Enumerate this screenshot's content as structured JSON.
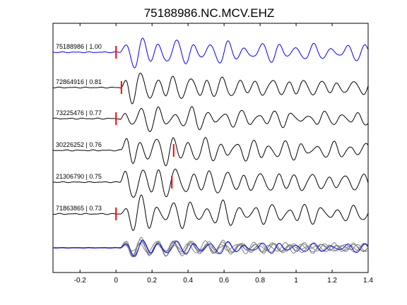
{
  "chart_data": {
    "type": "line",
    "title": "75188986.NC.MCV.EHZ",
    "xlabel": "",
    "ylabel": "",
    "xlim": [
      -0.35,
      1.4
    ],
    "xticks": [
      "-0.2",
      "0",
      "0.2",
      "0.4",
      "0.6",
      "0.8",
      "1",
      "1.2",
      "1.4"
    ],
    "xtick_values": [
      -0.2,
      0,
      0.2,
      0.4,
      0.6,
      0.8,
      1.0,
      1.2,
      1.4
    ],
    "grid": false,
    "series": [
      {
        "label": "75188986 | 1.00",
        "color": "#0000ff",
        "pick_time": 0.0,
        "onset": 0.02,
        "freq": 10.5,
        "amp": 0.78,
        "decay": 1.4,
        "seed": 1.3,
        "noise": 0.05
      },
      {
        "label": "72864916 | 0.81",
        "color": "#000000",
        "pick_time": 0.03,
        "onset": 0.02,
        "freq": 11.0,
        "amp": 0.8,
        "decay": 1.6,
        "seed": 2.7,
        "noise": 0.05
      },
      {
        "label": "73225476 | 0.77",
        "color": "#000000",
        "pick_time": 0.0,
        "onset": 0.02,
        "freq": 10.8,
        "amp": 0.72,
        "decay": 1.7,
        "seed": 4.1,
        "noise": 0.06
      },
      {
        "label": "30226252 | 0.76",
        "color": "#000000",
        "pick_time": 0.32,
        "onset": 0.02,
        "freq": 11.2,
        "amp": 0.85,
        "decay": 1.5,
        "seed": 5.9,
        "noise": 0.06
      },
      {
        "label": "21306790 | 0.75",
        "color": "#000000",
        "pick_time": 0.31,
        "onset": 0.02,
        "freq": 10.6,
        "amp": 0.95,
        "decay": 1.8,
        "seed": 7.4,
        "noise": 0.05
      },
      {
        "label": "71863865 | 0.73",
        "color": "#000000",
        "pick_time": 0.0,
        "onset": 0.02,
        "freq": 11.0,
        "amp": 0.88,
        "decay": 1.5,
        "seed": 8.8,
        "noise": 0.06
      }
    ],
    "stack": {
      "overlay_color": "#808080",
      "reference_color": "#0000ff"
    },
    "pick_color": "#ff0000"
  }
}
